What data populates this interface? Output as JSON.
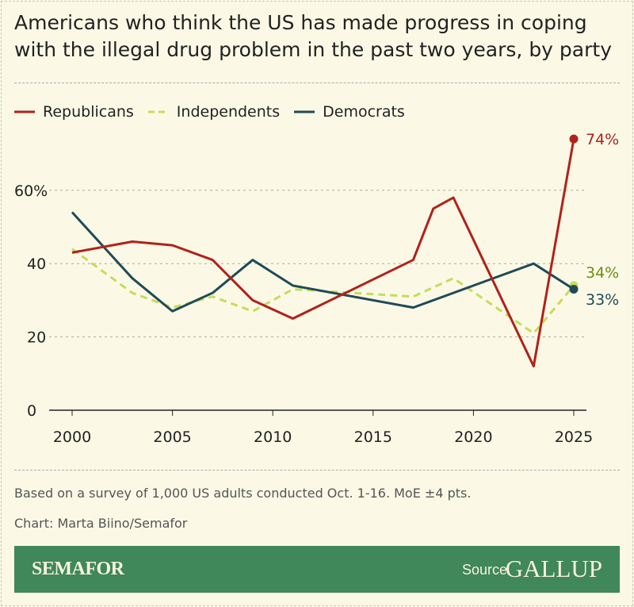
{
  "title": "Americans who think the US has made progress in coping with the illegal drug problem in the past two years, by party",
  "note": "Based on a survey of 1,000 US adults conducted Oct. 1-16. MoE ±4 pts.",
  "credit": "Chart: Marta Biino/Semafor",
  "footer": {
    "brand": "SEMAFOR",
    "source_label": "Source",
    "source_logo": "GALLUP"
  },
  "colors": {
    "background": "#fbf9e6",
    "footer": "#40875a"
  },
  "chart_data": {
    "type": "line",
    "xlim": [
      2000,
      2025
    ],
    "ylim": [
      0,
      75
    ],
    "yticks": [
      0,
      20,
      40,
      60
    ],
    "ytick_labels": [
      "0",
      "20",
      "40",
      "60%"
    ],
    "xticks": [
      2000,
      2005,
      2010,
      2015,
      2020,
      2025
    ],
    "xtick_labels": [
      "2000",
      "2005",
      "2010",
      "2015",
      "2020",
      "2025"
    ],
    "grid": true,
    "legend": "top-left",
    "series": [
      {
        "name": "Republicans",
        "color": "#b2211a",
        "dash": false,
        "label_color": "#b2211a",
        "end_label": "74%",
        "x": [
          2000,
          2003,
          2005,
          2007,
          2009,
          2011,
          2017,
          2018,
          2019,
          2023,
          2025
        ],
        "y": [
          43,
          46,
          45,
          41,
          30,
          25,
          41,
          55,
          58,
          12,
          74
        ]
      },
      {
        "name": "Independents",
        "color": "#c5dd5a",
        "dash": true,
        "label_color": "#6e8a1a",
        "end_label": "34%",
        "x": [
          2000,
          2003,
          2005,
          2007,
          2009,
          2011,
          2017,
          2019,
          2023,
          2025
        ],
        "y": [
          44,
          32,
          28,
          31,
          27,
          33,
          31,
          36,
          21,
          34
        ]
      },
      {
        "name": "Democrats",
        "color": "#1f4b57",
        "dash": false,
        "label_color": "#1f4b57",
        "end_label": "33%",
        "x": [
          2000,
          2003,
          2005,
          2007,
          2009,
          2011,
          2017,
          2023,
          2025
        ],
        "y": [
          54,
          36,
          27,
          32,
          41,
          34,
          28,
          40,
          33
        ]
      }
    ]
  }
}
